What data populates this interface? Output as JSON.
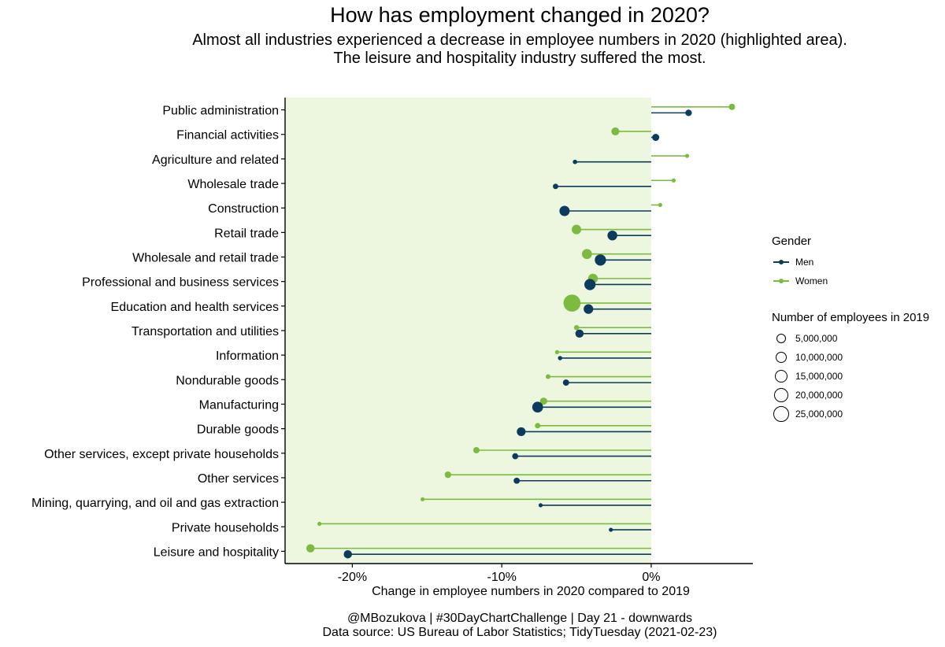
{
  "title": "How has employment changed in 2020?",
  "subtitle": [
    "Almost all industries experienced a decrease in employee numbers in 2020 (highlighted area).",
    "The leisure and hospitality industry suffered the most."
  ],
  "caption": [
    "@MBozukova | #30DayChartChallenge | Day 21 - downwards",
    "Data source: US Bureau of Labor Statistics; TidyTuesday (2021-02-23)"
  ],
  "colors": {
    "men": "#0d3b5e",
    "women": "#7cbb3f",
    "highlight": "#edf7e0"
  },
  "legend": {
    "gender_title": "Gender",
    "gender_items": [
      {
        "label": "Men",
        "color": "#0d3b5e"
      },
      {
        "label": "Women",
        "color": "#7cbb3f"
      }
    ],
    "size_title": "Number of employees in 2019",
    "size_items": [
      "5,000,000",
      "10,000,000",
      "15,000,000",
      "20,000,000",
      "25,000,000"
    ]
  },
  "chart_data": {
    "type": "lollipop",
    "xlabel": "Change in employee numbers in 2020 compared to 2019",
    "ylabel": "",
    "xlim": [
      -24.5,
      6.8
    ],
    "xticks": [
      -20,
      -10,
      0
    ],
    "xtick_labels": [
      "-20%",
      "-10%",
      "0%"
    ],
    "highlight_range": [
      -24.5,
      0
    ],
    "categories": [
      "Public administration",
      "Financial activities",
      "Agriculture and related",
      "Wholesale trade",
      "Construction",
      "Retail trade",
      "Wholesale and retail trade",
      "Professional and business services",
      "Education and health services",
      "Transportation and utilities",
      "Information",
      "Nondurable goods",
      "Manufacturing",
      "Durable goods",
      "Other services, except private households",
      "Other services",
      "Mining, quarrying, and oil and gas extraction",
      "Private households",
      "Leisure and hospitality"
    ],
    "series": [
      {
        "name": "Men",
        "values": [
          2.5,
          0.3,
          -5.1,
          -6.4,
          -5.8,
          -2.6,
          -3.4,
          -4.1,
          -4.2,
          -4.8,
          -6.1,
          -5.7,
          -7.6,
          -8.7,
          -9.1,
          -9.0,
          -7.4,
          -2.7,
          -20.3
        ],
        "employees_2019": [
          3800000,
          4700000,
          1800000,
          2700000,
          9600000,
          8800000,
          11500000,
          11500000,
          8400000,
          6200000,
          1700000,
          3600000,
          10700000,
          7100000,
          3400000,
          3500000,
          700000,
          200000,
          6200000
        ]
      },
      {
        "name": "Women",
        "values": [
          5.4,
          -2.4,
          2.4,
          1.5,
          0.6,
          -5.0,
          -4.3,
          -3.9,
          -5.3,
          -5.0,
          -6.3,
          -6.9,
          -7.2,
          -7.6,
          -11.7,
          -13.6,
          -15.3,
          -22.2,
          -22.8
        ],
        "employees_2019": [
          3700000,
          5900000,
          700000,
          1100000,
          1400000,
          8200000,
          9200000,
          8700000,
          26700000,
          2400000,
          1300000,
          2100000,
          4800000,
          2700000,
          3600000,
          4000000,
          200000,
          600000,
          6300000
        ]
      }
    ]
  }
}
